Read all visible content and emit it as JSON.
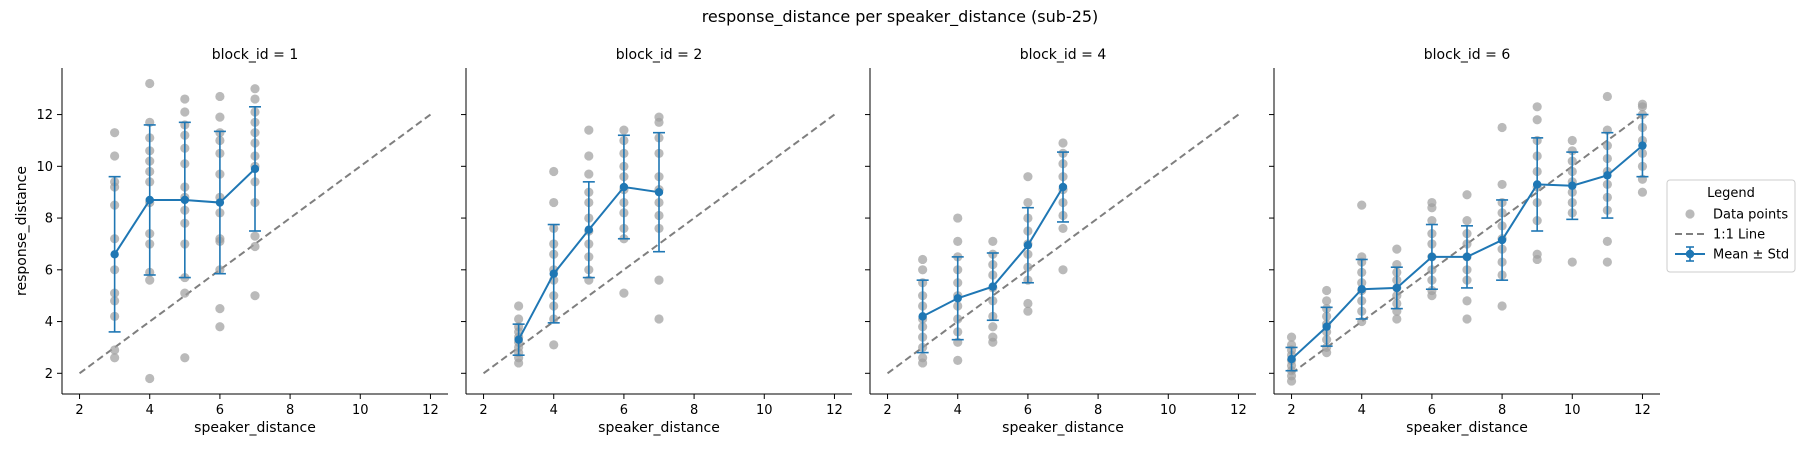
{
  "chart_data": {
    "type": "scatter",
    "title": "response_distance per speaker_distance (sub-25)",
    "xlabel": "speaker_distance",
    "ylabel": "response_distance",
    "xlim": [
      1.5,
      12.5
    ],
    "ylim": [
      1.2,
      13.8
    ],
    "x_ticks": [
      2,
      4,
      6,
      8,
      10,
      12
    ],
    "y_ticks": [
      2,
      4,
      6,
      8,
      10,
      12
    ],
    "grid": false,
    "sharey": true,
    "legend": {
      "title": "Legend",
      "placement": "right",
      "entries": [
        "Data points",
        "1:1 Line",
        "Mean ± Std"
      ]
    },
    "colors": {
      "points": "#a0a0a0",
      "mean": "#1f77b4",
      "identity": "#7f7f7f"
    },
    "identity_line": [
      [
        2,
        2
      ],
      [
        12,
        12
      ]
    ],
    "panels": [
      {
        "title": "block_id = 1",
        "mean_std": [
          {
            "x": 3,
            "mean": 6.6,
            "std": 3.0
          },
          {
            "x": 4,
            "mean": 8.7,
            "std": 2.9
          },
          {
            "x": 5,
            "mean": 8.7,
            "std": 3.0
          },
          {
            "x": 6,
            "mean": 8.6,
            "std": 2.75
          },
          {
            "x": 7,
            "mean": 9.9,
            "std": 2.4
          }
        ],
        "points": [
          [
            3,
            2.6
          ],
          [
            3,
            2.9
          ],
          [
            3,
            4.2
          ],
          [
            3,
            4.8
          ],
          [
            3,
            5.1
          ],
          [
            3,
            6.0
          ],
          [
            3,
            7.2
          ],
          [
            3,
            8.5
          ],
          [
            3,
            9.2
          ],
          [
            3,
            9.4
          ],
          [
            3,
            10.4
          ],
          [
            3,
            11.3
          ],
          [
            4,
            1.8
          ],
          [
            4,
            5.6
          ],
          [
            4,
            5.9
          ],
          [
            4,
            7.0
          ],
          [
            4,
            7.4
          ],
          [
            4,
            8.6
          ],
          [
            4,
            9.4
          ],
          [
            4,
            9.8
          ],
          [
            4,
            10.2
          ],
          [
            4,
            10.6
          ],
          [
            4,
            11.1
          ],
          [
            4,
            11.7
          ],
          [
            4,
            13.2
          ],
          [
            5,
            2.6
          ],
          [
            5,
            5.1
          ],
          [
            5,
            5.7
          ],
          [
            5,
            7.0
          ],
          [
            5,
            7.8
          ],
          [
            5,
            8.3
          ],
          [
            5,
            8.8
          ],
          [
            5,
            9.2
          ],
          [
            5,
            10.1
          ],
          [
            5,
            10.7
          ],
          [
            5,
            11.2
          ],
          [
            5,
            11.6
          ],
          [
            5,
            12.1
          ],
          [
            5,
            12.6
          ],
          [
            6,
            3.8
          ],
          [
            6,
            4.5
          ],
          [
            6,
            6.0
          ],
          [
            6,
            7.1
          ],
          [
            6,
            7.2
          ],
          [
            6,
            8.2
          ],
          [
            6,
            8.8
          ],
          [
            6,
            9.7
          ],
          [
            6,
            10.5
          ],
          [
            6,
            11.0
          ],
          [
            6,
            11.3
          ],
          [
            6,
            11.9
          ],
          [
            6,
            12.7
          ],
          [
            7,
            5.0
          ],
          [
            7,
            6.9
          ],
          [
            7,
            7.3
          ],
          [
            7,
            8.6
          ],
          [
            7,
            9.4
          ],
          [
            7,
            10.0
          ],
          [
            7,
            10.4
          ],
          [
            7,
            10.9
          ],
          [
            7,
            11.3
          ],
          [
            7,
            11.7
          ],
          [
            7,
            12.1
          ],
          [
            7,
            12.6
          ],
          [
            7,
            13.0
          ]
        ]
      },
      {
        "title": "block_id = 2",
        "mean_std": [
          {
            "x": 3,
            "mean": 3.3,
            "std": 0.6
          },
          {
            "x": 4,
            "mean": 5.85,
            "std": 1.9
          },
          {
            "x": 5,
            "mean": 7.55,
            "std": 1.85
          },
          {
            "x": 6,
            "mean": 9.2,
            "std": 2.0
          },
          {
            "x": 7,
            "mean": 9.0,
            "std": 2.3
          }
        ],
        "points": [
          [
            3,
            2.4
          ],
          [
            3,
            2.6
          ],
          [
            3,
            2.8
          ],
          [
            3,
            3.0
          ],
          [
            3,
            3.2
          ],
          [
            3,
            3.4
          ],
          [
            3,
            3.6
          ],
          [
            3,
            3.8
          ],
          [
            3,
            4.1
          ],
          [
            3,
            4.6
          ],
          [
            4,
            3.1
          ],
          [
            4,
            4.1
          ],
          [
            4,
            4.6
          ],
          [
            4,
            5.0
          ],
          [
            4,
            5.6
          ],
          [
            4,
            6.0
          ],
          [
            4,
            6.6
          ],
          [
            4,
            7.0
          ],
          [
            4,
            7.6
          ],
          [
            4,
            8.6
          ],
          [
            4,
            9.8
          ],
          [
            5,
            5.6
          ],
          [
            5,
            6.0
          ],
          [
            5,
            6.5
          ],
          [
            5,
            7.0
          ],
          [
            5,
            7.5
          ],
          [
            5,
            8.0
          ],
          [
            5,
            8.6
          ],
          [
            5,
            9.0
          ],
          [
            5,
            9.7
          ],
          [
            5,
            10.4
          ],
          [
            5,
            11.4
          ],
          [
            6,
            5.1
          ],
          [
            6,
            7.2
          ],
          [
            6,
            7.6
          ],
          [
            6,
            8.2
          ],
          [
            6,
            8.6
          ],
          [
            6,
            9.1
          ],
          [
            6,
            9.6
          ],
          [
            6,
            10.0
          ],
          [
            6,
            10.5
          ],
          [
            6,
            11.0
          ],
          [
            6,
            11.4
          ],
          [
            7,
            4.1
          ],
          [
            7,
            5.6
          ],
          [
            7,
            7.6
          ],
          [
            7,
            8.1
          ],
          [
            7,
            8.6
          ],
          [
            7,
            9.1
          ],
          [
            7,
            9.6
          ],
          [
            7,
            10.5
          ],
          [
            7,
            11.1
          ],
          [
            7,
            11.7
          ],
          [
            7,
            11.9
          ]
        ]
      },
      {
        "title": "block_id = 4",
        "mean_std": [
          {
            "x": 3,
            "mean": 4.2,
            "std": 1.4
          },
          {
            "x": 4,
            "mean": 4.9,
            "std": 1.6
          },
          {
            "x": 5,
            "mean": 5.35,
            "std": 1.3
          },
          {
            "x": 6,
            "mean": 6.95,
            "std": 1.45
          },
          {
            "x": 7,
            "mean": 9.2,
            "std": 1.35
          }
        ],
        "points": [
          [
            3,
            2.4
          ],
          [
            3,
            2.6
          ],
          [
            3,
            3.0
          ],
          [
            3,
            3.4
          ],
          [
            3,
            3.8
          ],
          [
            3,
            4.1
          ],
          [
            3,
            4.6
          ],
          [
            3,
            5.0
          ],
          [
            3,
            5.5
          ],
          [
            3,
            6.0
          ],
          [
            3,
            6.4
          ],
          [
            4,
            2.5
          ],
          [
            4,
            3.2
          ],
          [
            4,
            3.6
          ],
          [
            4,
            4.1
          ],
          [
            4,
            4.6
          ],
          [
            4,
            5.0
          ],
          [
            4,
            5.5
          ],
          [
            4,
            6.0
          ],
          [
            4,
            6.5
          ],
          [
            4,
            7.1
          ],
          [
            4,
            8.0
          ],
          [
            5,
            3.2
          ],
          [
            5,
            3.4
          ],
          [
            5,
            3.8
          ],
          [
            5,
            4.2
          ],
          [
            5,
            4.8
          ],
          [
            5,
            5.3
          ],
          [
            5,
            5.8
          ],
          [
            5,
            6.2
          ],
          [
            5,
            6.6
          ],
          [
            5,
            7.1
          ],
          [
            6,
            4.4
          ],
          [
            6,
            4.7
          ],
          [
            6,
            5.6
          ],
          [
            6,
            6.1
          ],
          [
            6,
            6.6
          ],
          [
            6,
            7.0
          ],
          [
            6,
            7.5
          ],
          [
            6,
            8.0
          ],
          [
            6,
            8.6
          ],
          [
            6,
            9.6
          ],
          [
            7,
            6.0
          ],
          [
            7,
            7.6
          ],
          [
            7,
            8.1
          ],
          [
            7,
            8.6
          ],
          [
            7,
            9.1
          ],
          [
            7,
            9.6
          ],
          [
            7,
            10.1
          ],
          [
            7,
            10.5
          ],
          [
            7,
            10.9
          ]
        ]
      },
      {
        "title": "block_id = 6",
        "mean_std": [
          {
            "x": 2,
            "mean": 2.55,
            "std": 0.45
          },
          {
            "x": 3,
            "mean": 3.8,
            "std": 0.75
          },
          {
            "x": 4,
            "mean": 5.25,
            "std": 1.15
          },
          {
            "x": 5,
            "mean": 5.3,
            "std": 0.8
          },
          {
            "x": 6,
            "mean": 6.5,
            "std": 1.25
          },
          {
            "x": 7,
            "mean": 6.5,
            "std": 1.2
          },
          {
            "x": 8,
            "mean": 7.15,
            "std": 1.55
          },
          {
            "x": 9,
            "mean": 9.3,
            "std": 1.8
          },
          {
            "x": 10,
            "mean": 9.25,
            "std": 1.3
          },
          {
            "x": 11,
            "mean": 9.65,
            "std": 1.65
          },
          {
            "x": 12,
            "mean": 10.8,
            "std": 1.2
          }
        ],
        "points": [
          [
            2,
            1.7
          ],
          [
            2,
            1.9
          ],
          [
            2,
            2.1
          ],
          [
            2,
            2.3
          ],
          [
            2,
            2.5
          ],
          [
            2,
            2.7
          ],
          [
            2,
            2.9
          ],
          [
            2,
            3.1
          ],
          [
            2,
            3.4
          ],
          [
            3,
            2.8
          ],
          [
            3,
            3.0
          ],
          [
            3,
            3.3
          ],
          [
            3,
            3.6
          ],
          [
            3,
            3.9
          ],
          [
            3,
            4.2
          ],
          [
            3,
            4.5
          ],
          [
            3,
            4.8
          ],
          [
            3,
            5.2
          ],
          [
            4,
            4.0
          ],
          [
            4,
            4.4
          ],
          [
            4,
            4.8
          ],
          [
            4,
            5.2
          ],
          [
            4,
            5.5
          ],
          [
            4,
            5.9
          ],
          [
            4,
            6.3
          ],
          [
            4,
            6.5
          ],
          [
            4,
            8.5
          ],
          [
            5,
            4.1
          ],
          [
            5,
            4.4
          ],
          [
            5,
            4.7
          ],
          [
            5,
            5.0
          ],
          [
            5,
            5.3
          ],
          [
            5,
            5.6
          ],
          [
            5,
            5.9
          ],
          [
            5,
            6.2
          ],
          [
            5,
            6.8
          ],
          [
            6,
            5.0
          ],
          [
            6,
            5.2
          ],
          [
            6,
            5.6
          ],
          [
            6,
            6.0
          ],
          [
            6,
            6.5
          ],
          [
            6,
            7.0
          ],
          [
            6,
            7.4
          ],
          [
            6,
            7.9
          ],
          [
            6,
            8.4
          ],
          [
            6,
            8.6
          ],
          [
            7,
            4.1
          ],
          [
            7,
            4.8
          ],
          [
            7,
            5.6
          ],
          [
            7,
            6.0
          ],
          [
            7,
            6.5
          ],
          [
            7,
            7.0
          ],
          [
            7,
            7.4
          ],
          [
            7,
            7.9
          ],
          [
            7,
            8.9
          ],
          [
            8,
            4.6
          ],
          [
            8,
            5.8
          ],
          [
            8,
            6.3
          ],
          [
            8,
            6.8
          ],
          [
            8,
            7.2
          ],
          [
            8,
            7.7
          ],
          [
            8,
            8.2
          ],
          [
            8,
            8.6
          ],
          [
            8,
            9.3
          ],
          [
            8,
            11.5
          ],
          [
            9,
            6.4
          ],
          [
            9,
            6.6
          ],
          [
            9,
            7.9
          ],
          [
            9,
            8.6
          ],
          [
            9,
            9.2
          ],
          [
            9,
            9.8
          ],
          [
            9,
            10.4
          ],
          [
            9,
            11.0
          ],
          [
            9,
            11.8
          ],
          [
            9,
            12.3
          ],
          [
            10,
            6.3
          ],
          [
            10,
            8.2
          ],
          [
            10,
            8.6
          ],
          [
            10,
            9.0
          ],
          [
            10,
            9.4
          ],
          [
            10,
            9.8
          ],
          [
            10,
            10.2
          ],
          [
            10,
            10.6
          ],
          [
            10,
            11.0
          ],
          [
            11,
            6.3
          ],
          [
            11,
            7.1
          ],
          [
            11,
            8.3
          ],
          [
            11,
            8.8
          ],
          [
            11,
            9.3
          ],
          [
            11,
            9.8
          ],
          [
            11,
            10.3
          ],
          [
            11,
            10.8
          ],
          [
            11,
            11.4
          ],
          [
            11,
            12.7
          ],
          [
            12,
            9.0
          ],
          [
            12,
            9.5
          ],
          [
            12,
            10.0
          ],
          [
            12,
            10.5
          ],
          [
            12,
            11.0
          ],
          [
            12,
            11.5
          ],
          [
            12,
            12.0
          ],
          [
            12,
            12.3
          ],
          [
            12,
            12.4
          ]
        ]
      }
    ]
  }
}
